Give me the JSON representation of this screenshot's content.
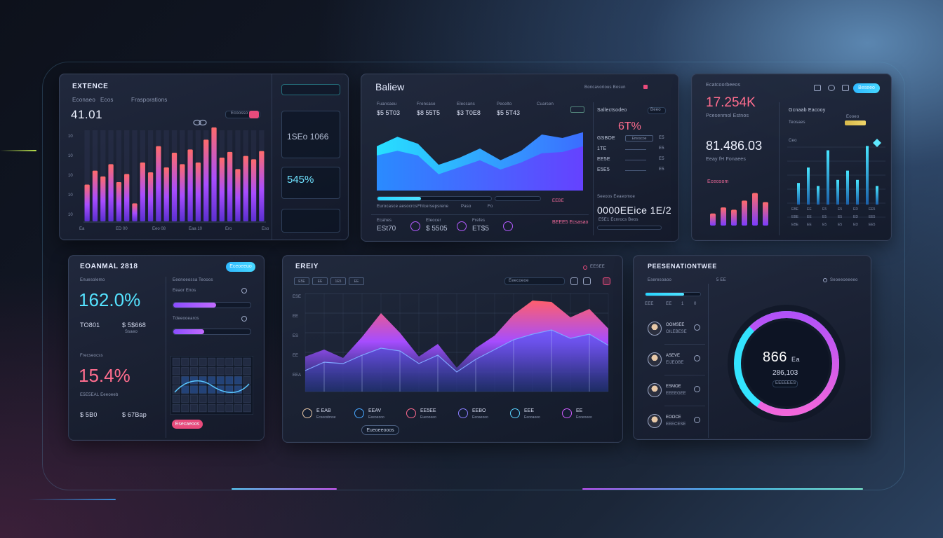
{
  "panel1": {
    "title": "EXTENCE",
    "tabs": [
      "Econaeo",
      "Ecos",
      "Frasporations"
    ],
    "value": "41.01",
    "chip_label": "Ecoosso",
    "y_ticks": [
      "10",
      "10",
      "10",
      "10",
      "10"
    ],
    "x_ticks": [
      "Ea",
      "ED 00",
      "Eeo 08",
      "Eaa 10",
      "Ero",
      "Eso 10"
    ],
    "bars": [
      0.45,
      0.62,
      0.55,
      0.7,
      0.48,
      0.58,
      0.22,
      0.72,
      0.6,
      0.92,
      0.66,
      0.84,
      0.7,
      0.88,
      0.72,
      1.0,
      1.15,
      0.78,
      0.85,
      0.64,
      0.8,
      0.76,
      0.86
    ]
  },
  "panel2": {
    "title": "Baliew",
    "header_right": "Boncavorious  Bosun",
    "col_labels": [
      "Fuancaeu",
      "Frencase",
      "Elecsans",
      "Pecelto",
      "Cuarsen"
    ],
    "col_values": [
      "$5 5T03",
      "$8 55T5",
      "$3 T0E8",
      "$5 5T43",
      ""
    ],
    "area_x": [
      0,
      1,
      2,
      3,
      4,
      5,
      6,
      7,
      8,
      9,
      10
    ],
    "area_series_a": [
      38,
      46,
      40,
      22,
      28,
      36,
      26,
      34,
      48,
      45,
      50
    ],
    "area_series_b": [
      30,
      34,
      30,
      14,
      20,
      26,
      18,
      24,
      32,
      33,
      38
    ],
    "progress": 0.38,
    "progress_labels": [
      "Eurocasce aesocrcs",
      "Fhlcersepsrene",
      "Paso",
      "Fo"
    ],
    "footer": [
      {
        "label": "Ecahes",
        "value": "ESt70"
      },
      {
        "label": "Eleocer",
        "value": "$ 5505"
      },
      {
        "label": "Frefes",
        "value": "ET$5"
      }
    ],
    "side_title": "Sallectsodeo",
    "side_chip": "Beeo",
    "side_value": "6T%",
    "side_rows": [
      {
        "k": "GSBOE",
        "btn": "Emoscoe",
        "v": "E5"
      },
      {
        "k": "1TE",
        "v": "E5"
      },
      {
        "k": "EE5E",
        "v": "E5"
      },
      {
        "k": "E5E5",
        "v": "E5"
      }
    ],
    "side_caption": "Seeoos Eeaeomoe",
    "side_big": "0000EEice  1E/2",
    "side_foot": "E5E1  Ecnrocs  Beos",
    "side_bar_label": "EM5E Seosoooe",
    "pink_label": "BEEE5 Ecsasao"
  },
  "panel3": {
    "header": "Ecatcoorbeeos",
    "value1": "17.254K",
    "value1_caption": "Pcesenmol Estnos",
    "value2": "81.486.03",
    "value2_caption": "Eeay fH Fonaees",
    "legend1": "Eceosom",
    "right_title": "Gcnaab Eacooy",
    "right_sub": "Teosaes",
    "right_chip": "Eooeo",
    "right_cap": "Ceo",
    "bottom_bars": [
      0.32,
      0.48,
      0.42,
      0.66,
      0.86,
      0.62
    ],
    "right_bars": [
      0.35,
      0.6,
      0.3,
      0.88,
      0.4,
      0.55,
      0.4,
      0.95,
      0.3
    ],
    "right_xticks": [
      "EBE",
      "EE",
      "E5",
      "E5",
      "ED",
      "EE5"
    ],
    "toggle_label": "Beseeo"
  },
  "panel4": {
    "title": "EOANMAL 2818",
    "button": "Eceoeeuo",
    "caption1": "Enuesolemo",
    "value1": "162.0%",
    "sub1": "TO801",
    "sub1b": "$ 5$668",
    "sub1_cap": "Ssaeo",
    "caption2": "Frecseocss",
    "value2": "15.4%",
    "sub2_cap": "E5E5EAL Eeeoeeb",
    "sub2": "$ 5B0",
    "sub2b": "$ 67Bap",
    "form_title": "Eeonoeossa Teooos",
    "form_label1": "Eeaor Enos",
    "form_label2": "Tdeeooearos",
    "slider1": 0.55,
    "slider2": 0.4,
    "cta": "Esecaeoos"
  },
  "panel5": {
    "title": "EREIY",
    "filters": [
      "E5E",
      "EE",
      "1E5",
      "EE"
    ],
    "search_placeholder": "Eeecoeoe",
    "y_ticks": [
      "ESE",
      "EE",
      "ES",
      "EE",
      "EEA"
    ],
    "x": [
      0,
      1,
      2,
      3,
      4,
      5,
      6,
      7,
      8,
      9,
      10,
      11,
      12,
      13,
      14,
      15,
      16
    ],
    "series_front": [
      50,
      60,
      48,
      78,
      112,
      84,
      50,
      68,
      34,
      62,
      80,
      110,
      130,
      128,
      106,
      118,
      90
    ],
    "series_back": [
      30,
      42,
      40,
      52,
      62,
      58,
      40,
      52,
      28,
      46,
      60,
      74,
      82,
      88,
      76,
      82,
      66
    ],
    "legend": [
      {
        "name": "E EAB",
        "cap": "Ecseosbnoe"
      },
      {
        "name": "EEAV",
        "cap": "Eeeoeooo"
      },
      {
        "name": "EE5EE",
        "cap": "Eueooeeo"
      },
      {
        "name": "EEBO",
        "cap": "Eeoaeoeo"
      },
      {
        "name": "EEE",
        "cap": "Eeooaeeo"
      },
      {
        "name": "EE",
        "cap": "Eooeoeeo"
      }
    ],
    "button": "Eueoeeooos"
  },
  "panel6": {
    "title": "PEESENATIONTWEE",
    "sub_title": "Eseresoaoo",
    "right_link": "Seoeeoeeeeo",
    "bar_fill": 0.7,
    "bar_labels": [
      "EEE",
      "EE",
      "1",
      "0"
    ],
    "people": [
      {
        "name": "OOMSEE",
        "role": "OILEBESE"
      },
      {
        "name": "ASEVE",
        "role": "EIJEOBE"
      },
      {
        "name": "ESMOE",
        "role": "EEEEGEE"
      },
      {
        "name": "EOOCE",
        "role": "EEECESE"
      }
    ],
    "donut_value": "866",
    "donut_unit": "Ea",
    "donut_sub": "286,103",
    "donut_chip": "EEEEEES",
    "donut_fraction": 0.72
  }
}
